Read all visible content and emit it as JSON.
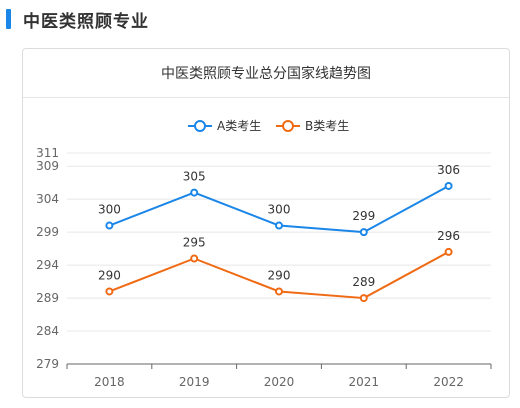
{
  "header": {
    "title": "中医类照顾专业"
  },
  "chart_data": {
    "type": "line",
    "title": "中医类照顾专业总分国家线趋势图",
    "categories": [
      "2018",
      "2019",
      "2020",
      "2021",
      "2022"
    ],
    "series": [
      {
        "name": "A类考生",
        "color": "#1a86e8",
        "values": [
          300,
          305,
          300,
          299,
          306
        ]
      },
      {
        "name": "B类考生",
        "color": "#f06a14",
        "values": [
          290,
          295,
          290,
          289,
          296
        ]
      }
    ],
    "yticks": [
      279,
      284,
      289,
      294,
      299,
      304,
      309,
      311
    ],
    "ylim": [
      279,
      311
    ],
    "xlabel": "",
    "ylabel": "",
    "grid": true,
    "legend": "top-center"
  }
}
